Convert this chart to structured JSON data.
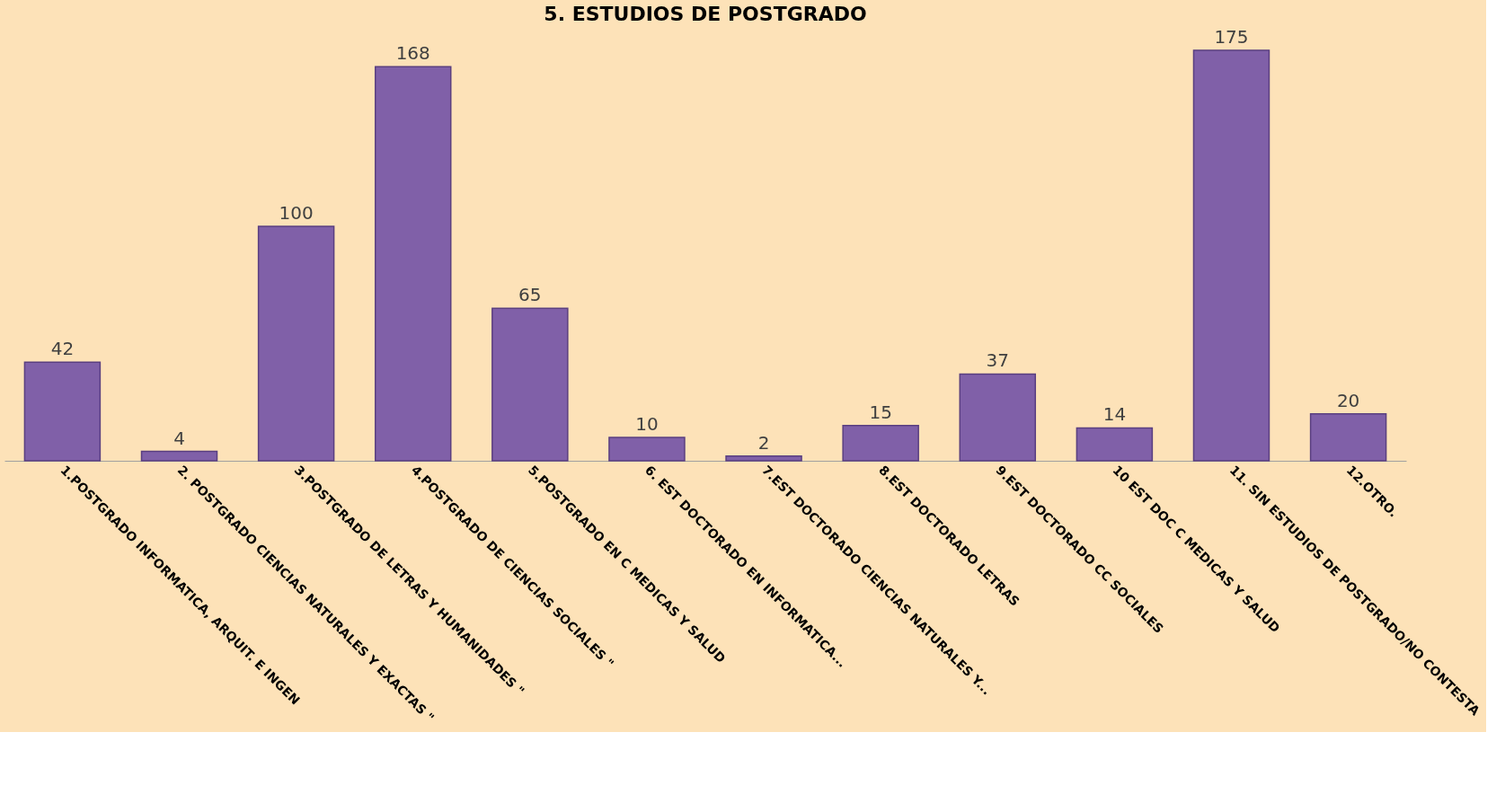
{
  "chart_data": {
    "type": "bar",
    "title": "5. ESTUDIOS DE POSTGRADO",
    "categories": [
      "1.POSTGRADO INFORMATICA, ARQUIT. E INGEN",
      "2. POSTGRADO  CIENCIAS NATURALES Y EXACTAS \"",
      "3.POSTGRADO   DE LETRAS Y HUMANIDADES \"",
      "4.POSTGRADO  DE CIENCIAS SOCIALES \"",
      "5.POSTGRADO EN C MEDICAS Y SALUD",
      "6. EST DOCTORADO EN INFORMATICA...",
      "7.EST DOCTORADO CIENCIAS NATURALES Y...",
      "8.EST DOCTORADO LETRAS",
      "9.EST DOCTORADO   CC SOCIALES",
      "10 EST DOC C MEDICAS Y SALUD",
      "11. SIN ESTUDIOS DE POSTGRADO/NO CONTESTA",
      "12.OTRO."
    ],
    "values": [
      42,
      4,
      100,
      168,
      65,
      10,
      2,
      15,
      37,
      14,
      175,
      20
    ],
    "color": "#8060a8",
    "data_labels": true,
    "grid": false
  }
}
